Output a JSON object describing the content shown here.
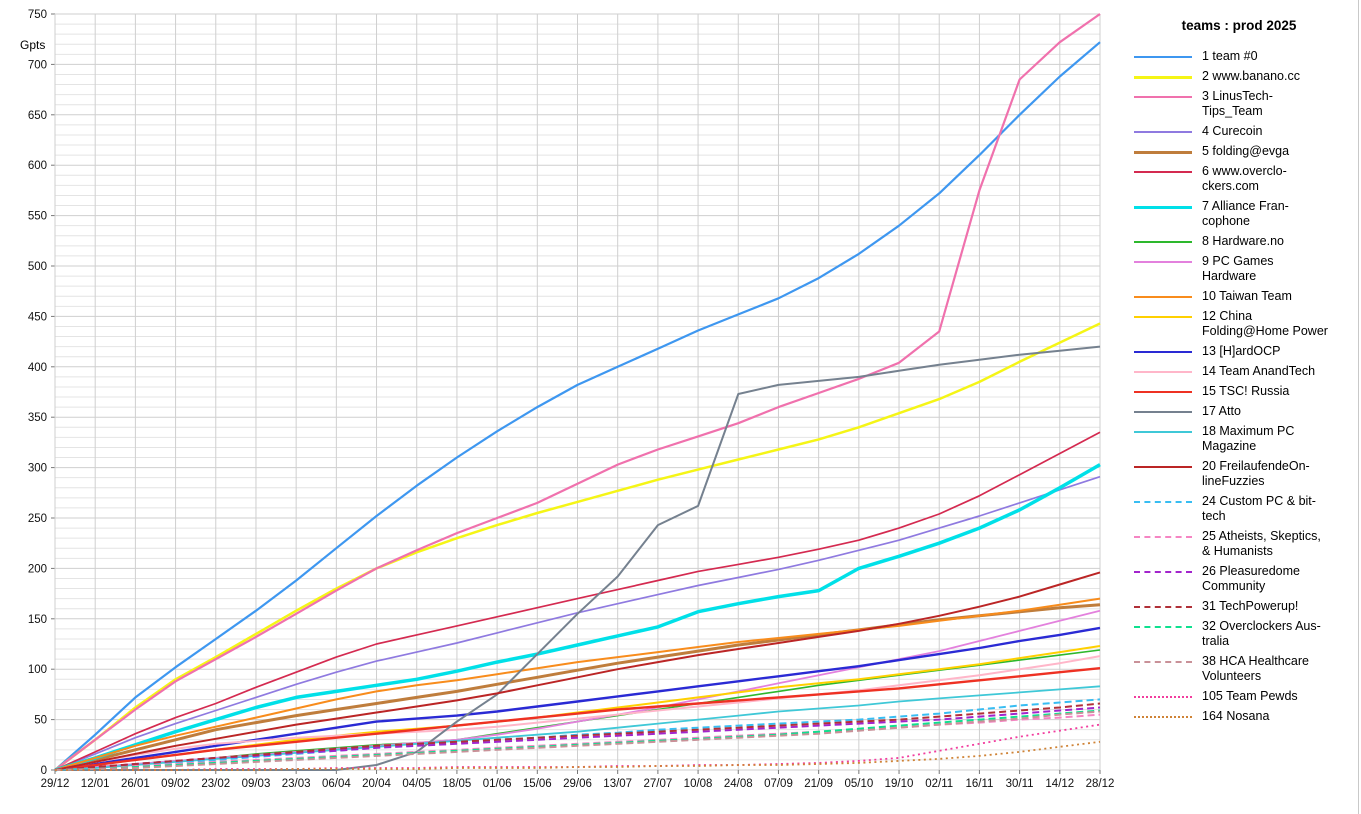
{
  "chart_data": {
    "type": "line",
    "title": "teams : prod 2025",
    "ylabel": "Gpts",
    "ylim": [
      0,
      750
    ],
    "y_major_step": 50,
    "y_minor_step": 10,
    "grid": true,
    "legend_position": "right",
    "x_tick_labels": [
      "29/12",
      "12/01",
      "26/01",
      "09/02",
      "23/02",
      "09/03",
      "23/03",
      "06/04",
      "20/04",
      "04/05",
      "18/05",
      "01/06",
      "15/06",
      "29/06",
      "13/07",
      "27/07",
      "10/08",
      "24/08",
      "07/09",
      "21/09",
      "05/10",
      "19/10",
      "02/11",
      "16/11",
      "30/11",
      "14/12",
      "28/12"
    ],
    "colors": {
      "grid_minor": "#e4e4e4",
      "grid_major": "#cfcfcf",
      "axis_tick": "#777777"
    },
    "series": [
      {
        "rank": "1",
        "label": "1 team #0",
        "color": "#3e97f0",
        "style": "solid",
        "width": 2.2,
        "values": [
          0,
          35,
          72,
          102,
          130,
          158,
          188,
          220,
          252,
          282,
          310,
          336,
          360,
          382,
          400,
          418,
          436,
          452,
          468,
          488,
          512,
          540,
          572,
          610,
          650,
          688,
          722
        ]
      },
      {
        "rank": "2",
        "label": "2 www.banano.cc",
        "color": "#f5f516",
        "style": "solid",
        "width": 2.5,
        "values": [
          0,
          30,
          62,
          90,
          112,
          135,
          158,
          180,
          200,
          216,
          230,
          243,
          255,
          266,
          277,
          288,
          298,
          308,
          318,
          328,
          340,
          354,
          368,
          385,
          405,
          424,
          443
        ]
      },
      {
        "rank": "3",
        "label": "3 LinusTech-\nTips_Team",
        "color": "#f071ad",
        "style": "solid",
        "width": 2.2,
        "values": [
          0,
          30,
          60,
          88,
          110,
          132,
          155,
          178,
          200,
          218,
          235,
          250,
          265,
          284,
          303,
          318,
          331,
          344,
          360,
          374,
          388,
          404,
          435,
          575,
          685,
          722,
          750
        ]
      },
      {
        "rank": "4",
        "label": "4 Curecoin",
        "color": "#8f7ae0",
        "style": "solid",
        "width": 1.7,
        "values": [
          0,
          16,
          32,
          46,
          59,
          72,
          85,
          97,
          108,
          117,
          126,
          136,
          146,
          156,
          165,
          174,
          183,
          191,
          199,
          208,
          218,
          228,
          240,
          252,
          265,
          278,
          291
        ]
      },
      {
        "rank": "5",
        "label": "5 folding@evga",
        "color": "#bf7d3c",
        "style": "solid",
        "width": 3,
        "values": [
          0,
          10,
          20,
          30,
          40,
          47,
          54,
          60,
          66,
          72,
          78,
          85,
          92,
          99,
          106,
          112,
          118,
          124,
          129,
          134,
          139,
          144,
          149,
          153,
          157,
          161,
          164
        ]
      },
      {
        "rank": "6",
        "label": "6 www.overclo-\nckers.com",
        "color": "#d42a50",
        "style": "solid",
        "width": 1.7,
        "values": [
          0,
          18,
          36,
          52,
          66,
          82,
          97,
          112,
          125,
          134,
          143,
          152,
          161,
          170,
          179,
          188,
          197,
          204,
          211,
          219,
          228,
          240,
          254,
          272,
          293,
          314,
          335
        ]
      },
      {
        "rank": "7",
        "label": "7 Alliance Fran-\ncophone",
        "color": "#00e0e8",
        "style": "solid",
        "width": 3.5,
        "values": [
          0,
          12,
          25,
          38,
          50,
          62,
          72,
          78,
          84,
          90,
          98,
          107,
          115,
          124,
          133,
          142,
          157,
          165,
          172,
          178,
          200,
          212,
          225,
          240,
          258,
          280,
          303
        ]
      },
      {
        "rank": "8",
        "label": "8 Hardware.no",
        "color": "#2db82d",
        "style": "solid",
        "width": 1.6,
        "values": [
          0,
          3,
          6,
          9,
          12,
          16,
          19,
          22,
          25,
          27,
          30,
          36,
          42,
          48,
          54,
          60,
          66,
          72,
          78,
          84,
          89,
          94,
          99,
          104,
          109,
          114,
          119
        ]
      },
      {
        "rank": "9",
        "label": "9 PC Games\nHardware",
        "color": "#e381dd",
        "style": "solid",
        "width": 1.8,
        "values": [
          0,
          3,
          6,
          9,
          12,
          15,
          18,
          21,
          24,
          27,
          30,
          35,
          41,
          48,
          55,
          62,
          70,
          78,
          86,
          94,
          102,
          110,
          118,
          128,
          138,
          148,
          158
        ]
      },
      {
        "rank": "10",
        "label": "10 Taiwan Team",
        "color": "#f88c1c",
        "style": "solid",
        "width": 2,
        "values": [
          0,
          12,
          24,
          34,
          43,
          52,
          61,
          70,
          78,
          84,
          89,
          95,
          101,
          107,
          112,
          117,
          122,
          127,
          131,
          135,
          139,
          143,
          148,
          153,
          158,
          164,
          170
        ]
      },
      {
        "rank": "12",
        "label": "12 China\nFolding@Home Power",
        "color": "#ffd000",
        "style": "solid",
        "width": 2,
        "values": [
          0,
          5,
          10,
          15,
          20,
          25,
          30,
          34,
          38,
          41,
          44,
          48,
          52,
          57,
          62,
          67,
          72,
          77,
          82,
          86,
          90,
          95,
          100,
          105,
          111,
          117,
          123
        ]
      },
      {
        "rank": "13",
        "label": "13 [H]ardOCP",
        "color": "#2a2ad4",
        "style": "solid",
        "width": 2.4,
        "values": [
          0,
          6,
          12,
          18,
          24,
          30,
          36,
          42,
          48,
          51,
          54,
          58,
          63,
          68,
          73,
          78,
          83,
          88,
          93,
          98,
          103,
          109,
          115,
          121,
          128,
          134,
          141
        ]
      },
      {
        "rank": "14",
        "label": "14 Team AnandTech",
        "color": "#ffb6c9",
        "style": "solid",
        "width": 2,
        "values": [
          0,
          8,
          15,
          21,
          26,
          29,
          32,
          34,
          36,
          38,
          40,
          43,
          47,
          51,
          55,
          59,
          63,
          67,
          71,
          75,
          79,
          84,
          89,
          94,
          100,
          106,
          113
        ]
      },
      {
        "rank": "15",
        "label": "15 TSC! Russia",
        "color": "#ee3123",
        "style": "solid",
        "width": 2.4,
        "values": [
          0,
          5,
          10,
          15,
          20,
          24,
          28,
          32,
          36,
          40,
          44,
          48,
          52,
          56,
          60,
          63,
          66,
          69,
          72,
          75,
          78,
          81,
          85,
          89,
          93,
          97,
          101
        ]
      },
      {
        "rank": "17",
        "label": "17 Atto",
        "color": "#75818f",
        "style": "solid",
        "width": 2,
        "values": [
          0,
          0,
          0,
          0,
          0,
          0,
          0,
          0,
          5,
          18,
          48,
          75,
          115,
          155,
          192,
          243,
          262,
          373,
          382,
          386,
          390,
          396,
          402,
          407,
          412,
          416,
          420
        ]
      },
      {
        "rank": "18",
        "label": "18 Maximum PC\nMagazine",
        "color": "#3fc8d7",
        "style": "solid",
        "width": 1.8,
        "values": [
          0,
          2,
          5,
          8,
          11,
          14,
          17,
          20,
          23,
          26,
          29,
          32,
          35,
          38,
          42,
          46,
          50,
          54,
          58,
          61,
          64,
          68,
          71,
          74,
          77,
          80,
          83
        ]
      },
      {
        "rank": "20",
        "label": "20 FreilaufendeOn-\nlineFuzzies",
        "color": "#bb2525",
        "style": "solid",
        "width": 2,
        "values": [
          0,
          8,
          16,
          24,
          31,
          38,
          45,
          51,
          57,
          63,
          69,
          76,
          84,
          92,
          100,
          107,
          114,
          120,
          126,
          132,
          138,
          145,
          153,
          162,
          172,
          184,
          196
        ]
      },
      {
        "rank": "24",
        "label": "24 Custom PC & bit-\ntech",
        "color": "#38bdf2",
        "style": "dashed",
        "width": 2,
        "values": [
          0,
          2,
          4,
          7,
          10,
          13,
          16,
          19,
          22,
          25,
          27,
          30,
          32,
          35,
          37,
          40,
          42,
          44,
          46,
          48,
          50,
          53,
          56,
          60,
          64,
          67,
          70
        ]
      },
      {
        "rank": "25",
        "label": "25 Atheists, Skeptics,\n& Humanists",
        "color": "#f585c3",
        "style": "dashed",
        "width": 2,
        "values": [
          0,
          2,
          4,
          6,
          8,
          10,
          12,
          14,
          16,
          18,
          20,
          22,
          24,
          26,
          28,
          30,
          32,
          34,
          36,
          38,
          40,
          42,
          45,
          47,
          50,
          52,
          55
        ]
      },
      {
        "rank": "26",
        "label": "26 Pleasuredome\nCommunity",
        "color": "#a224cc",
        "style": "dashed",
        "width": 2,
        "values": [
          0,
          3,
          6,
          9,
          12,
          14,
          17,
          19,
          22,
          24,
          26,
          28,
          30,
          32,
          34,
          36,
          38,
          40,
          42,
          44,
          46,
          48,
          50,
          53,
          56,
          59,
          62
        ]
      },
      {
        "rank": "31",
        "label": "31 TechPowerup!",
        "color": "#b03038",
        "style": "dashed",
        "width": 2,
        "values": [
          0,
          3,
          6,
          9,
          12,
          15,
          18,
          21,
          24,
          26,
          28,
          30,
          32,
          34,
          36,
          38,
          40,
          42,
          44,
          46,
          48,
          50,
          53,
          56,
          59,
          62,
          66
        ]
      },
      {
        "rank": "32",
        "label": "32 Overclockers Aus-\ntralia",
        "color": "#0fe08f",
        "style": "dashed",
        "width": 2,
        "values": [
          0,
          1,
          3,
          5,
          7,
          9,
          11,
          13,
          15,
          17,
          19,
          21,
          23,
          25,
          27,
          29,
          31,
          33,
          35,
          38,
          41,
          44,
          47,
          50,
          53,
          56,
          59
        ]
      },
      {
        "rank": "38",
        "label": "38 HCA Healthcare\nVolunteers",
        "color": "#c99198",
        "style": "dashed",
        "width": 2,
        "values": [
          0,
          1,
          2,
          4,
          6,
          8,
          10,
          12,
          14,
          16,
          18,
          20,
          22,
          24,
          26,
          28,
          30,
          32,
          34,
          36,
          39,
          42,
          45,
          48,
          51,
          55,
          58
        ]
      },
      {
        "rank": "105",
        "label": "105 Team Pewds",
        "color": "#f23d9e",
        "style": "dotted",
        "width": 1.8,
        "values": [
          0,
          0,
          0,
          0,
          1,
          1,
          1,
          2,
          2,
          2,
          3,
          3,
          3,
          3,
          4,
          4,
          5,
          5,
          6,
          7,
          9,
          12,
          19,
          26,
          33,
          39,
          45
        ]
      },
      {
        "rank": "164",
        "label": "164 Nosana",
        "color": "#cf8336",
        "style": "dotted",
        "width": 1.8,
        "values": [
          0,
          0,
          0,
          0,
          0,
          0,
          1,
          1,
          1,
          1,
          2,
          2,
          2,
          3,
          3,
          4,
          4,
          5,
          5,
          6,
          7,
          9,
          11,
          14,
          18,
          23,
          28
        ]
      }
    ]
  }
}
